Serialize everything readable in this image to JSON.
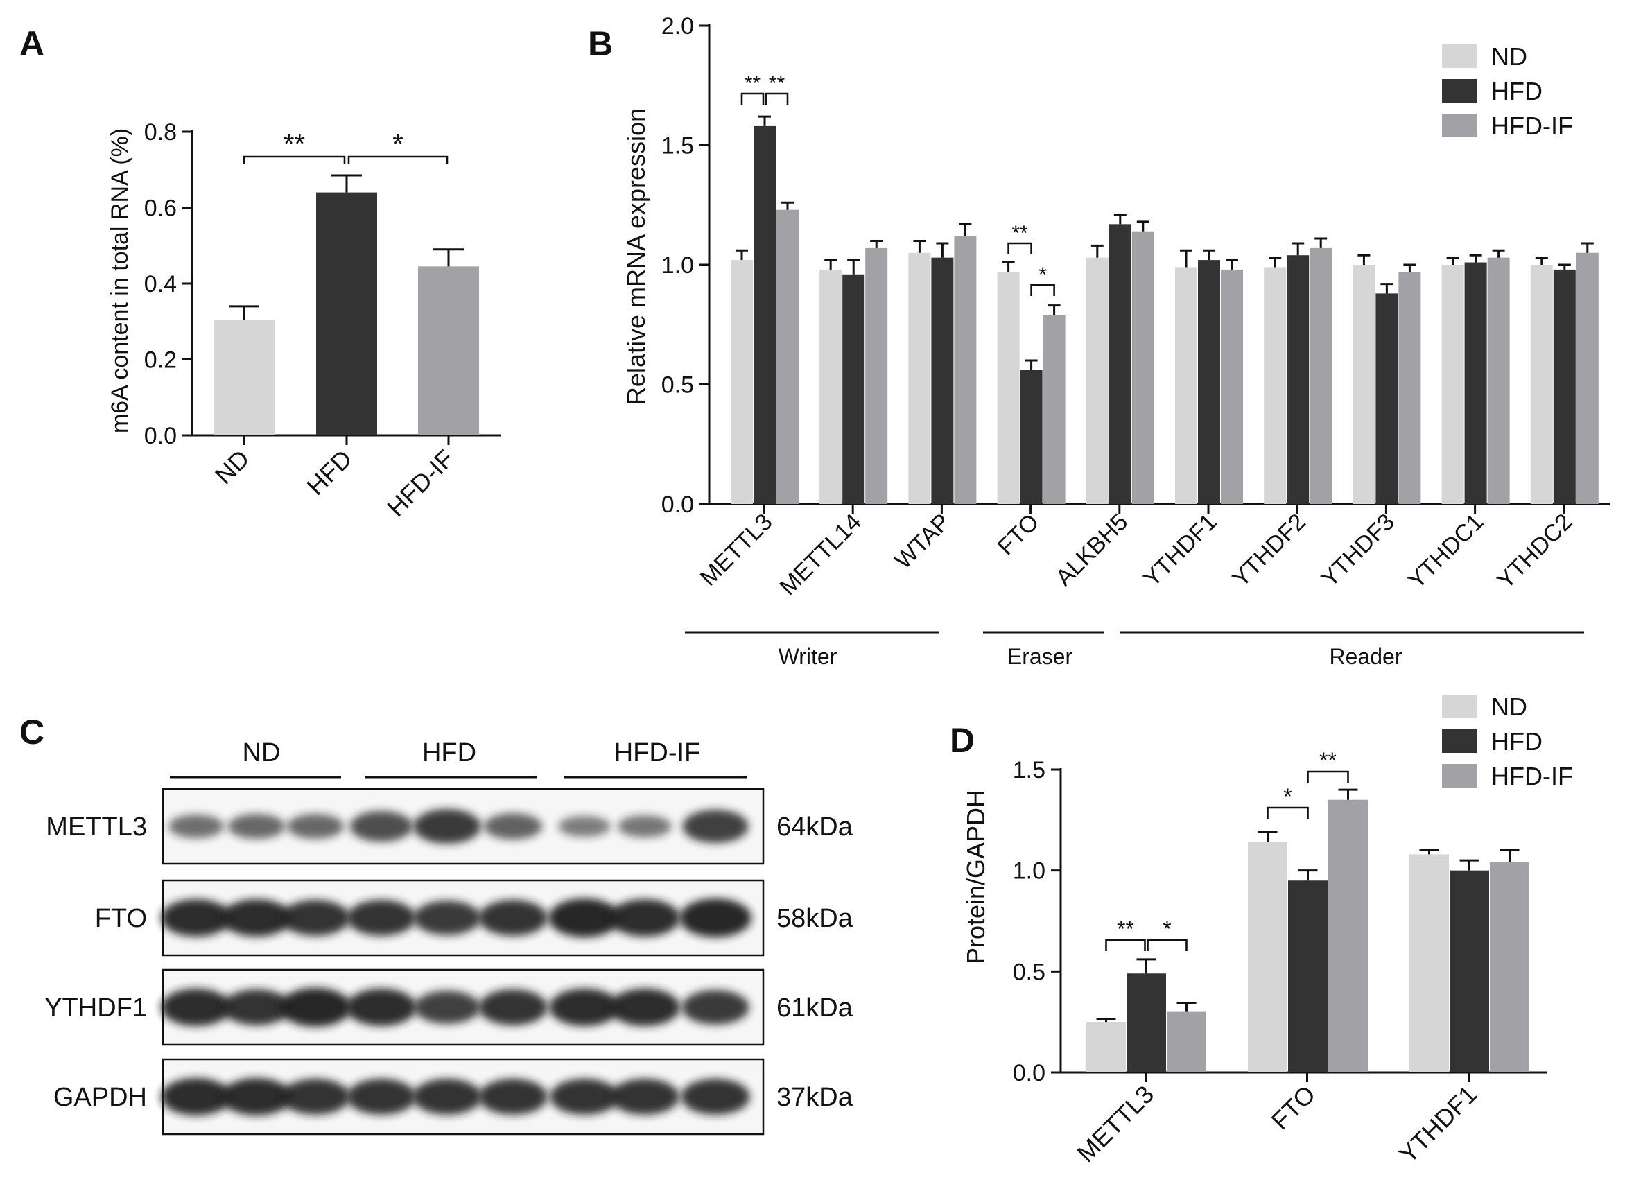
{
  "colors": {
    "ND": "#d6d6d6",
    "HFD": "#333333",
    "HFD-IF": "#a2a2a6",
    "axis": "#111111",
    "blot_bg": "#f6f6f6",
    "band": "#1c1c1c"
  },
  "chart_data": [
    {
      "panel": "A",
      "type": "bar",
      "categories": [
        "ND",
        "HFD",
        "HFD-IF"
      ],
      "values": [
        0.305,
        0.64,
        0.445
      ],
      "errors": [
        0.035,
        0.045,
        0.045
      ],
      "ylabel": "m6A content in total RNA (%)",
      "ylim": [
        0,
        0.8
      ],
      "yticks": [
        "0.0",
        "0.2",
        "0.4",
        "0.6",
        "0.8"
      ],
      "significance": [
        {
          "between": [
            "ND",
            "HFD"
          ],
          "label": "**"
        },
        {
          "between": [
            "HFD",
            "HFD-IF"
          ],
          "label": "*"
        }
      ]
    },
    {
      "panel": "B",
      "type": "bar",
      "categories": [
        "METTL3",
        "METTL14",
        "WTAP",
        "FTO",
        "ALKBH5",
        "YTHDF1",
        "YTHDF2",
        "YTHDF3",
        "YTHDC1",
        "YTHDC2"
      ],
      "series": [
        {
          "name": "ND",
          "values": [
            1.02,
            0.98,
            1.05,
            0.97,
            1.03,
            0.99,
            0.99,
            1.0,
            1.0,
            1.0
          ],
          "errors": [
            0.04,
            0.04,
            0.05,
            0.04,
            0.05,
            0.07,
            0.04,
            0.04,
            0.03,
            0.03
          ]
        },
        {
          "name": "HFD",
          "values": [
            1.58,
            0.96,
            1.03,
            0.56,
            1.17,
            1.02,
            1.04,
            0.88,
            1.01,
            0.98
          ],
          "errors": [
            0.04,
            0.06,
            0.06,
            0.04,
            0.04,
            0.04,
            0.05,
            0.04,
            0.03,
            0.02
          ]
        },
        {
          "name": "HFD-IF",
          "values": [
            1.23,
            1.07,
            1.12,
            0.79,
            1.14,
            0.98,
            1.07,
            0.97,
            1.03,
            1.05
          ],
          "errors": [
            0.03,
            0.03,
            0.05,
            0.04,
            0.04,
            0.04,
            0.04,
            0.03,
            0.03,
            0.04
          ]
        }
      ],
      "ylabel": "Relative mRNA expression",
      "ylim": [
        0,
        2.0
      ],
      "yticks": [
        "0.0",
        "0.5",
        "1.0",
        "1.5",
        "2.0"
      ],
      "legend": "top-right",
      "groups": [
        {
          "label": "Writer",
          "from": "METTL3",
          "to": "WTAP"
        },
        {
          "label": "Eraser",
          "from": "FTO",
          "to": "ALKBH5"
        },
        {
          "label": "Reader",
          "from": "YTHDF1",
          "to": "YTHDC2"
        }
      ],
      "significance": [
        {
          "category": "METTL3",
          "between": [
            "ND",
            "HFD"
          ],
          "label": "**"
        },
        {
          "category": "METTL3",
          "between": [
            "HFD",
            "HFD-IF"
          ],
          "label": "**"
        },
        {
          "category": "FTO",
          "between": [
            "ND",
            "HFD"
          ],
          "label": "**"
        },
        {
          "category": "FTO",
          "between": [
            "HFD",
            "HFD-IF"
          ],
          "label": "*"
        }
      ]
    },
    {
      "panel": "D",
      "type": "bar",
      "categories": [
        "METTL3",
        "FTO",
        "YTHDF1"
      ],
      "series": [
        {
          "name": "ND",
          "values": [
            0.25,
            1.14,
            1.08
          ],
          "errors": [
            0.015,
            0.05,
            0.02
          ]
        },
        {
          "name": "HFD",
          "values": [
            0.49,
            0.95,
            1.0
          ],
          "errors": [
            0.07,
            0.05,
            0.05
          ]
        },
        {
          "name": "HFD-IF",
          "values": [
            0.3,
            1.35,
            1.04
          ],
          "errors": [
            0.045,
            0.05,
            0.06
          ]
        }
      ],
      "ylabel": "Protein/GAPDH",
      "ylim": [
        0,
        1.5
      ],
      "yticks": [
        "0.0",
        "0.5",
        "1.0",
        "1.5"
      ],
      "legend": "top-right",
      "significance": [
        {
          "category": "METTL3",
          "between": [
            "ND",
            "HFD"
          ],
          "label": "**"
        },
        {
          "category": "METTL3",
          "between": [
            "HFD",
            "HFD-IF"
          ],
          "label": "*"
        },
        {
          "category": "FTO",
          "between": [
            "ND",
            "HFD"
          ],
          "label": "*"
        },
        {
          "category": "FTO",
          "between": [
            "HFD",
            "HFD-IF"
          ],
          "label": "**"
        }
      ]
    }
  ],
  "western_blot": {
    "panel": "C",
    "groups": [
      "ND",
      "HFD",
      "HFD-IF"
    ],
    "rows": [
      {
        "protein": "METTL3",
        "size": "64kDa",
        "intensity": [
          0.45,
          0.5,
          0.5,
          0.7,
          0.85,
          0.55,
          0.35,
          0.4,
          0.8
        ]
      },
      {
        "protein": "FTO",
        "size": "58kDa",
        "intensity": [
          0.95,
          0.95,
          0.9,
          0.9,
          0.85,
          0.9,
          1.0,
          0.95,
          1.0
        ]
      },
      {
        "protein": "YTHDF1",
        "size": "61kDa",
        "intensity": [
          0.95,
          0.9,
          1.0,
          0.95,
          0.8,
          0.9,
          0.95,
          0.95,
          0.85
        ]
      },
      {
        "protein": "GAPDH",
        "size": "37kDa",
        "intensity": [
          0.95,
          0.95,
          0.9,
          0.9,
          0.9,
          0.9,
          0.9,
          0.9,
          0.9
        ]
      }
    ]
  },
  "panel_labels": {
    "A": "A",
    "B": "B",
    "C": "C",
    "D": "D"
  }
}
